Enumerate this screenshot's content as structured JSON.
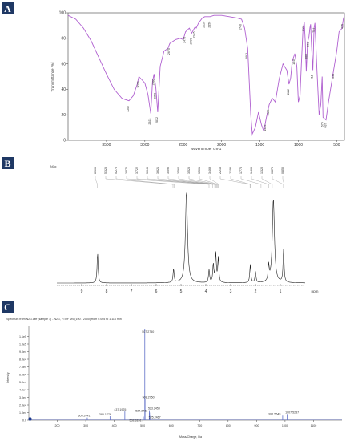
{
  "chart_data": [
    {
      "panel_label": "A",
      "type": "line",
      "xlabel": "Wavenumber cm-1",
      "ylabel": "Transmittance [%]",
      "xlim": [
        4000,
        400
      ],
      "ylim": [
        0,
        100
      ],
      "xticks": [
        3500,
        3000,
        2500,
        2000,
        1500,
        1000,
        500
      ],
      "yticks": [
        0,
        20,
        40,
        60,
        80,
        100
      ],
      "line_color": "#b060d0",
      "series": [
        {
          "x": [
            4000,
            3900,
            3800,
            3700,
            3600,
            3500,
            3400,
            3300,
            3260,
            3207,
            3150,
            3100,
            3078,
            3000,
            2960,
            2923,
            2900,
            2880,
            2856,
            2832,
            2800,
            2750,
            2700,
            2675,
            2600,
            2540,
            2500,
            2470,
            2420,
            2390,
            2345,
            2330,
            2300,
            2250,
            2220,
            2150,
            2100,
            2050,
            2000,
            1900,
            1800,
            1740,
            1700,
            1660,
            1640,
            1620,
            1600,
            1560,
            1520,
            1480,
            1450,
            1420,
            1380,
            1340,
            1300,
            1250,
            1200,
            1150,
            1122,
            1100,
            1080,
            1046,
            1020,
            1000,
            978,
            960,
            940,
            923,
            910,
            897,
            880,
            862,
            850,
            840,
            830,
            811,
            795,
            784,
            760,
            730,
            708,
            690,
            679,
            640,
            608,
            560,
            500,
            470,
            430,
            415,
            400
          ],
          "y": [
            98,
            95,
            88,
            78,
            65,
            52,
            40,
            33,
            32,
            31,
            35,
            44,
            50,
            45,
            36,
            21,
            46,
            52,
            41,
            22,
            58,
            70,
            72,
            76,
            79,
            80,
            79,
            85,
            88,
            84,
            89,
            88,
            92,
            96,
            97,
            97,
            98,
            98,
            98,
            97,
            96,
            95,
            88,
            72,
            46,
            20,
            5,
            10,
            22,
            12,
            7,
            17,
            28,
            33,
            30,
            48,
            60,
            55,
            44,
            49,
            62,
            68,
            58,
            30,
            35,
            60,
            87,
            93,
            78,
            54,
            77,
            81,
            88,
            91,
            76,
            55,
            88,
            92,
            58,
            20,
            28,
            50,
            18,
            16,
            30,
            48,
            70,
            85,
            88,
            95,
            98
          ]
        }
      ],
      "peak_labels": [
        "3207",
        "3078",
        "2923",
        "2856",
        "2880",
        "2832",
        "2675",
        "2470",
        "2390",
        "2345",
        "2220",
        "2150",
        "1740",
        "1661",
        "1423",
        "1380",
        "1122",
        "1046",
        "923",
        "884",
        "862",
        "811",
        "784",
        "679",
        "637",
        "538",
        "415"
      ]
    },
    {
      "panel_label": "B",
      "type": "line",
      "xlabel": "ppm",
      "xlim": [
        10,
        0
      ],
      "xticks": [
        9,
        8,
        7,
        6,
        5,
        4,
        3,
        2,
        1
      ],
      "line_color": "#222222",
      "header_text": "NGg",
      "shift_labels": [
        "8.363",
        "5.323",
        "5.275",
        "3.870",
        "3.722",
        "3.643",
        "3.621",
        "3.595",
        "3.562",
        "3.523",
        "3.501",
        "3.469",
        "2.218",
        "2.193",
        "1.778",
        "1.463",
        "1.325",
        "0.873",
        "0.850"
      ],
      "peaks": [
        {
          "ppm": 8.36,
          "height": 0.33
        },
        {
          "ppm": 5.3,
          "height": 0.15
        },
        {
          "ppm": 4.78,
          "height": 1.0
        },
        {
          "ppm": 3.87,
          "height": 0.14
        },
        {
          "ppm": 3.7,
          "height": 0.2
        },
        {
          "ppm": 3.6,
          "height": 0.32
        },
        {
          "ppm": 3.5,
          "height": 0.27
        },
        {
          "ppm": 2.21,
          "height": 0.2
        },
        {
          "ppm": 2.0,
          "height": 0.12
        },
        {
          "ppm": 1.47,
          "height": 0.17
        },
        {
          "ppm": 1.28,
          "height": 0.92
        },
        {
          "ppm": 0.87,
          "height": 0.36
        }
      ]
    },
    {
      "panel_label": "C",
      "type": "bar",
      "title": "Spectrum from N2G.wiff (sample 1) - N2G, +TOF MS (100 - 2000) from 0.005 to 1.116 min",
      "xlabel": "Mass/Charge, Da",
      "ylabel": "Intensity",
      "xlim": [
        100,
        1200
      ],
      "ylim": [
        0,
        120000
      ],
      "xticks": [
        "200",
        "300",
        "400",
        "500",
        "600",
        "700",
        "800",
        "900",
        "1000",
        "1100"
      ],
      "yticks": [
        "0.0",
        "1.0e4",
        "2.0e4",
        "3.0e4",
        "4.0e4",
        "5.0e4",
        "6.0e4",
        "7.0e4",
        "8.0e4",
        "9.0e4",
        "1.0e5",
        "1.1e5"
      ],
      "bar_color": "#6070c8",
      "peaks": [
        {
          "mz": 305.2441,
          "intensity": 3500,
          "label": "305.2441"
        },
        {
          "mz": 385.1776,
          "intensity": 5200,
          "label": "385.1776"
        },
        {
          "mz": 437.1925,
          "intensity": 11500,
          "label": "437.1925"
        },
        {
          "mz": 502.3151,
          "intensity": 4800,
          "label": "502.3151"
        },
        {
          "mz": 507.275,
          "intensity": 120000,
          "label": "507.2750"
        },
        {
          "mz": 508.275,
          "intensity": 28000,
          "label": "508.2750"
        },
        {
          "mz": 523.245,
          "intensity": 13000,
          "label": "523.2450"
        },
        {
          "mz": 524.2482,
          "intensity": 10000,
          "label": "524.2482"
        },
        {
          "mz": 525.2467,
          "intensity": 5800,
          "label": "525.2467"
        },
        {
          "mz": 991.5549,
          "intensity": 6000,
          "label": "991.5549"
        },
        {
          "mz": 1007.5287,
          "intensity": 8000,
          "label": "1007.5287"
        }
      ]
    }
  ]
}
